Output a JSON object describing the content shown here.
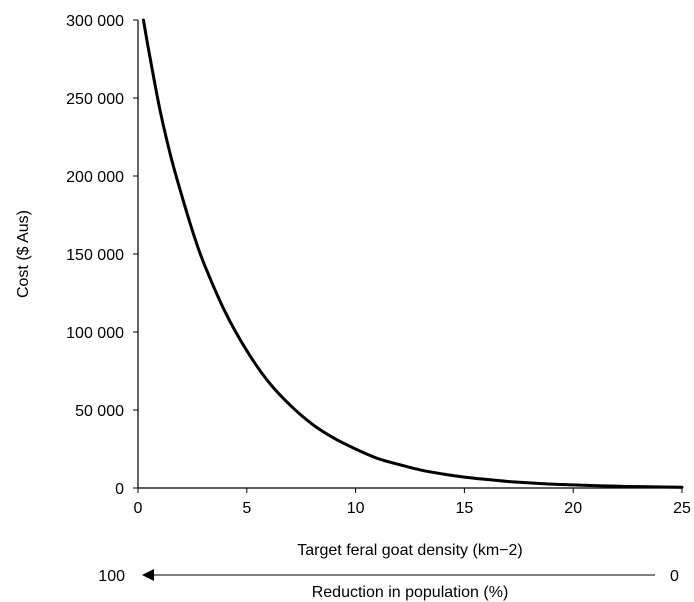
{
  "chart_data": {
    "type": "line",
    "title": "",
    "xlabel": "Target feral goat density (km−2)",
    "ylabel": "Cost ($ Aus)",
    "xlim": [
      0,
      25
    ],
    "ylim": [
      0,
      300000
    ],
    "xticks": [
      "0",
      "5",
      "10",
      "15",
      "20",
      "25"
    ],
    "yticks": [
      "0",
      "50 000",
      "100 000",
      "150 000",
      "200 000",
      "250 000",
      "300 000"
    ],
    "grid": false,
    "legend": "none",
    "series": [
      {
        "x": [
          0.25,
          0.5,
          1,
          1.5,
          2,
          2.5,
          3,
          4,
          5,
          6,
          7,
          8,
          9,
          10,
          11,
          12,
          13,
          14,
          15,
          16,
          17,
          18,
          19,
          20,
          21,
          22,
          22.5,
          25
        ],
        "y": [
          300000,
          280000,
          243000,
          213000,
          188000,
          165000,
          145000,
          113000,
          88000,
          68000,
          53000,
          41000,
          32000,
          25000,
          19000,
          15000,
          11500,
          9000,
          7000,
          5500,
          4200,
          3300,
          2500,
          2000,
          1500,
          1200,
          1000,
          500
        ],
        "color": "#000000"
      }
    ],
    "annotation": {
      "arrow_left_label": "100",
      "arrow_right_label": "0",
      "arrow_label": "Reduction in population (%)"
    }
  }
}
